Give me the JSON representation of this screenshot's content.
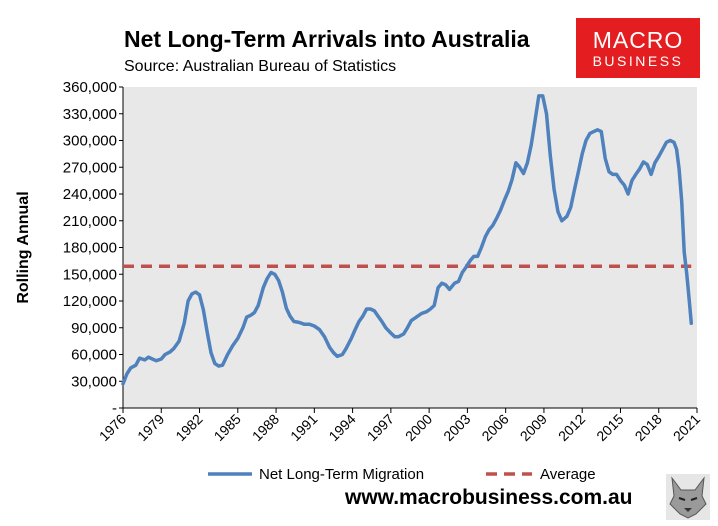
{
  "header": {
    "title": "Net Long-Term Arrivals into Australia",
    "subtitle": "Source: Australian Bureau of Statistics"
  },
  "logo": {
    "line1": "MACRO",
    "line2": "BUSINESS"
  },
  "footer": {
    "url": "www.macrobusiness.com.au"
  },
  "colors": {
    "series": "#4f81bd",
    "average": "#c0504d",
    "plot_bg": "#e8e8e8",
    "logo_bg": "#e41e20"
  },
  "chart_data": {
    "type": "line",
    "title": "Net Long-Term Arrivals into Australia",
    "xlabel": "",
    "ylabel": "Rolling Annual",
    "xlim": [
      1976,
      2021
    ],
    "ylim": [
      0,
      360000
    ],
    "yticks": [
      0,
      30000,
      60000,
      90000,
      120000,
      150000,
      180000,
      210000,
      240000,
      270000,
      300000,
      330000,
      360000
    ],
    "ytick_labels": [
      "-",
      "30,000",
      "60,000",
      "90,000",
      "120,000",
      "150,000",
      "180,000",
      "210,000",
      "240,000",
      "270,000",
      "300,000",
      "330,000",
      "360,000"
    ],
    "xticks": [
      1976,
      1979,
      1982,
      1985,
      1988,
      1991,
      1994,
      1997,
      2000,
      2003,
      2006,
      2009,
      2012,
      2015,
      2018,
      2021
    ],
    "xtick_labels": [
      "1976",
      "1979",
      "1982",
      "1985",
      "1988",
      "1991",
      "1994",
      "1997",
      "2000",
      "2003",
      "2006",
      "2009",
      "2012",
      "2015",
      "2018",
      "2021"
    ],
    "series": [
      {
        "name": "Net Long-Term Migration",
        "x": [
          1976.0,
          1976.3,
          1976.6,
          1977.0,
          1977.3,
          1977.7,
          1978.0,
          1978.3,
          1978.6,
          1979.0,
          1979.3,
          1979.7,
          1980.0,
          1980.4,
          1980.8,
          1981.1,
          1981.4,
          1981.7,
          1982.0,
          1982.3,
          1982.6,
          1982.9,
          1983.2,
          1983.5,
          1983.8,
          1984.2,
          1984.6,
          1985.0,
          1985.4,
          1985.7,
          1986.0,
          1986.3,
          1986.6,
          1987.0,
          1987.3,
          1987.6,
          1987.9,
          1988.2,
          1988.5,
          1988.8,
          1989.1,
          1989.4,
          1989.8,
          1990.2,
          1990.6,
          1991.0,
          1991.4,
          1991.8,
          1992.2,
          1992.5,
          1992.8,
          1993.2,
          1993.5,
          1993.9,
          1994.2,
          1994.5,
          1994.8,
          1995.1,
          1995.4,
          1995.7,
          1996.0,
          1996.3,
          1996.6,
          1997.0,
          1997.3,
          1997.6,
          1998.0,
          1998.3,
          1998.6,
          1999.0,
          1999.4,
          1999.8,
          2000.1,
          2000.4,
          2000.7,
          2001.0,
          2001.3,
          2001.6,
          2002.0,
          2002.3,
          2002.6,
          2002.9,
          2003.2,
          2003.5,
          2003.8,
          2004.1,
          2004.4,
          2004.7,
          2005.0,
          2005.3,
          2005.6,
          2005.9,
          2006.2,
          2006.5,
          2006.8,
          2007.1,
          2007.4,
          2007.7,
          2008.0,
          2008.3,
          2008.6,
          2008.9,
          2009.2,
          2009.5,
          2009.8,
          2010.1,
          2010.4,
          2010.8,
          2011.1,
          2011.4,
          2011.7,
          2012.0,
          2012.3,
          2012.6,
          2012.9,
          2013.2,
          2013.5,
          2013.8,
          2014.1,
          2014.4,
          2014.7,
          2015.0,
          2015.3,
          2015.6,
          2015.9,
          2016.2,
          2016.5,
          2016.8,
          2017.1,
          2017.4,
          2017.7,
          2018.0,
          2018.3,
          2018.6,
          2018.9,
          2019.2,
          2019.4,
          2019.6,
          2019.8,
          2020.0,
          2020.2,
          2020.4,
          2020.55
        ],
        "values": [
          27000,
          38000,
          45000,
          48000,
          56000,
          54000,
          57000,
          55000,
          53000,
          55000,
          60000,
          63000,
          67000,
          75000,
          95000,
          120000,
          128000,
          130000,
          127000,
          110000,
          85000,
          62000,
          50000,
          47000,
          48000,
          60000,
          70000,
          78000,
          90000,
          102000,
          104000,
          107000,
          115000,
          135000,
          145000,
          152000,
          150000,
          143000,
          130000,
          112000,
          103000,
          97000,
          96000,
          94000,
          94000,
          92000,
          88000,
          80000,
          68000,
          62000,
          58000,
          60000,
          67000,
          78000,
          88000,
          97000,
          103000,
          111000,
          111000,
          109000,
          103000,
          97000,
          90000,
          84000,
          80000,
          80000,
          83000,
          90000,
          98000,
          102000,
          106000,
          108000,
          111000,
          115000,
          135000,
          140000,
          138000,
          133000,
          140000,
          142000,
          152000,
          158000,
          165000,
          170000,
          170000,
          180000,
          192000,
          200000,
          205000,
          213000,
          222000,
          233000,
          243000,
          256000,
          275000,
          270000,
          263000,
          275000,
          295000,
          322000,
          350000,
          350000,
          330000,
          283000,
          245000,
          220000,
          210000,
          215000,
          225000,
          245000,
          265000,
          285000,
          300000,
          308000,
          310000,
          312000,
          310000,
          280000,
          265000,
          262000,
          262000,
          255000,
          250000,
          240000,
          255000,
          262000,
          268000,
          276000,
          273000,
          262000,
          275000,
          282000,
          290000,
          298000,
          300000,
          298000,
          290000,
          268000,
          232000,
          175000,
          150000,
          120000,
          95000
        ],
        "color": "#4f81bd"
      },
      {
        "name": "Average",
        "x": [
          1976,
          2020.55
        ],
        "values": [
          159000,
          159000
        ],
        "color": "#c0504d"
      }
    ],
    "legend": {
      "position": "bottom",
      "entries": [
        "Net Long-Term Migration",
        "Average"
      ]
    }
  }
}
